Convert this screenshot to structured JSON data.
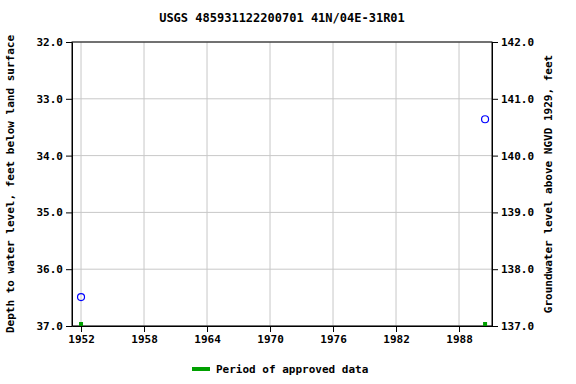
{
  "chart_data": {
    "type": "scatter",
    "title": "USGS 485931122200701 41N/04E-31R01",
    "ylabel": "Depth to water level, feet below land surface",
    "y2label": "Groundwater level above NGVD 1929, feet",
    "xlim": [
      1951.14,
      1991.14
    ],
    "xticks": [
      1952,
      1958,
      1964,
      1970,
      1976,
      1982,
      1988
    ],
    "ylim": [
      37,
      32
    ],
    "yticks": [
      {
        "value": 32,
        "label": "32.0"
      },
      {
        "value": 33,
        "label": "33.0"
      },
      {
        "value": 34,
        "label": "34.0"
      },
      {
        "value": 35,
        "label": "35.0"
      },
      {
        "value": 36,
        "label": "36.0"
      },
      {
        "value": 37,
        "label": "37.0"
      }
    ],
    "y2lim": [
      137,
      142
    ],
    "y2ticks": [
      {
        "value": 137,
        "label": "137.0"
      },
      {
        "value": 138,
        "label": "138.0"
      },
      {
        "value": 139,
        "label": "139.0"
      },
      {
        "value": 140,
        "label": "140.0"
      },
      {
        "value": 141,
        "label": "141.0"
      },
      {
        "value": 142,
        "label": "142.0"
      }
    ],
    "grid": true,
    "legend": "bottom",
    "series": [
      {
        "color": "#0000ff",
        "marker": "circle",
        "x": [
          1952.0,
          1990.48
        ],
        "values": [
          36.49,
          33.36
        ]
      },
      {
        "name": "Period of approved data",
        "color": "#00a000",
        "marker": "square",
        "x": [
          1952.0,
          1990.48
        ],
        "values": [
          37,
          37
        ]
      }
    ]
  }
}
